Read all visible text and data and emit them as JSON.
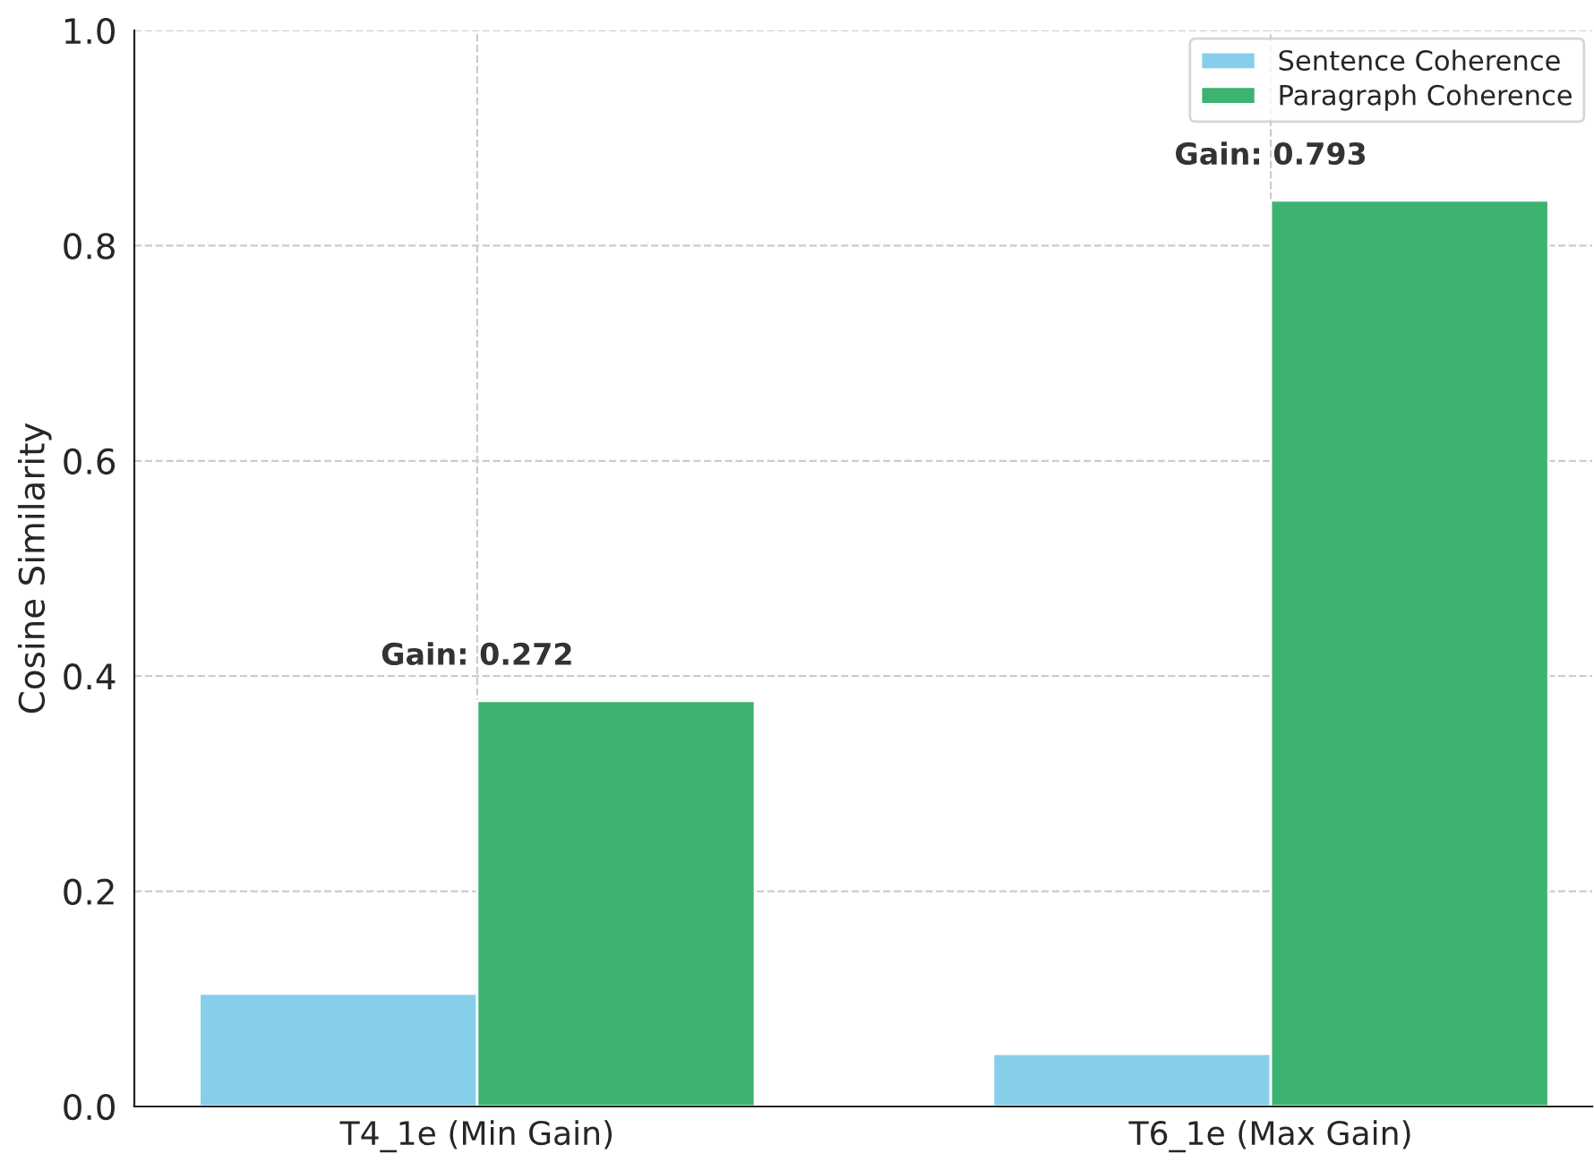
{
  "chart_data": {
    "type": "bar",
    "ylabel": "Cosine Similarity",
    "categories": [
      "T4_1e (Min Gain)",
      "T6_1e (Max Gain)"
    ],
    "series": [
      {
        "name": "Sentence Coherence",
        "color": "#87ceeb",
        "values": [
          0.105,
          0.049
        ]
      },
      {
        "name": "Paragraph Coherence",
        "color": "#3cb371",
        "values": [
          0.377,
          0.842
        ]
      }
    ],
    "ylim": [
      0,
      1
    ],
    "yticks": [
      {
        "value": 0,
        "label": "0.0"
      },
      {
        "value": 0.2,
        "label": "0.2"
      },
      {
        "value": 0.4,
        "label": "0.4"
      },
      {
        "value": 0.6,
        "label": "0.6"
      },
      {
        "value": 0.8,
        "label": "0.8"
      },
      {
        "value": 1,
        "label": "1.0"
      }
    ],
    "grid": true,
    "legend": "top right",
    "annotations": [
      "Gain: 0.272",
      "Gain: 0.793"
    ]
  }
}
